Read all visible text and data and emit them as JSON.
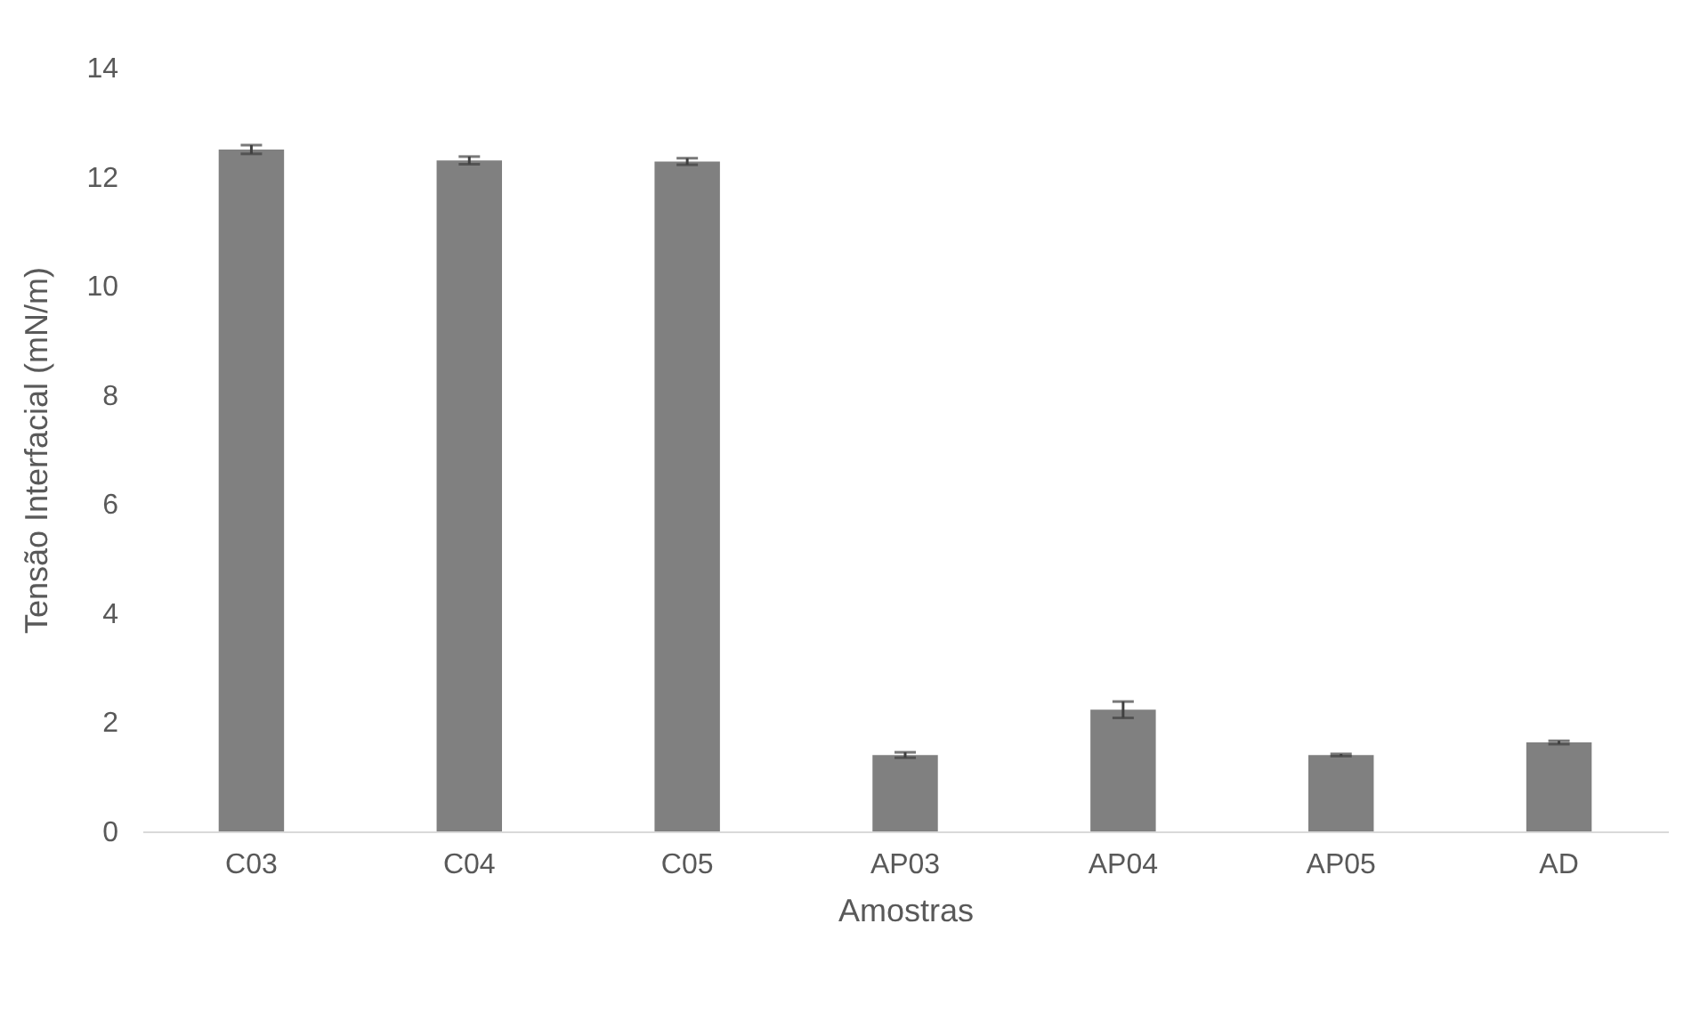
{
  "chart_data": {
    "type": "bar",
    "xlabel": "Amostras",
    "ylabel": "Tensão Interfacial (mN/m)",
    "categories": [
      "C03",
      "C04",
      "C05",
      "AP03",
      "AP04",
      "AP05",
      "AD"
    ],
    "values": [
      12.5,
      12.3,
      12.28,
      1.4,
      2.23,
      1.4,
      1.63
    ],
    "errors": [
      0.08,
      0.07,
      0.06,
      0.05,
      0.15,
      0.02,
      0.03
    ],
    "color": "#808080",
    "ylim": [
      0,
      14
    ],
    "yticks": [
      0,
      2,
      4,
      6,
      8,
      10,
      12,
      14
    ],
    "grid": false
  }
}
